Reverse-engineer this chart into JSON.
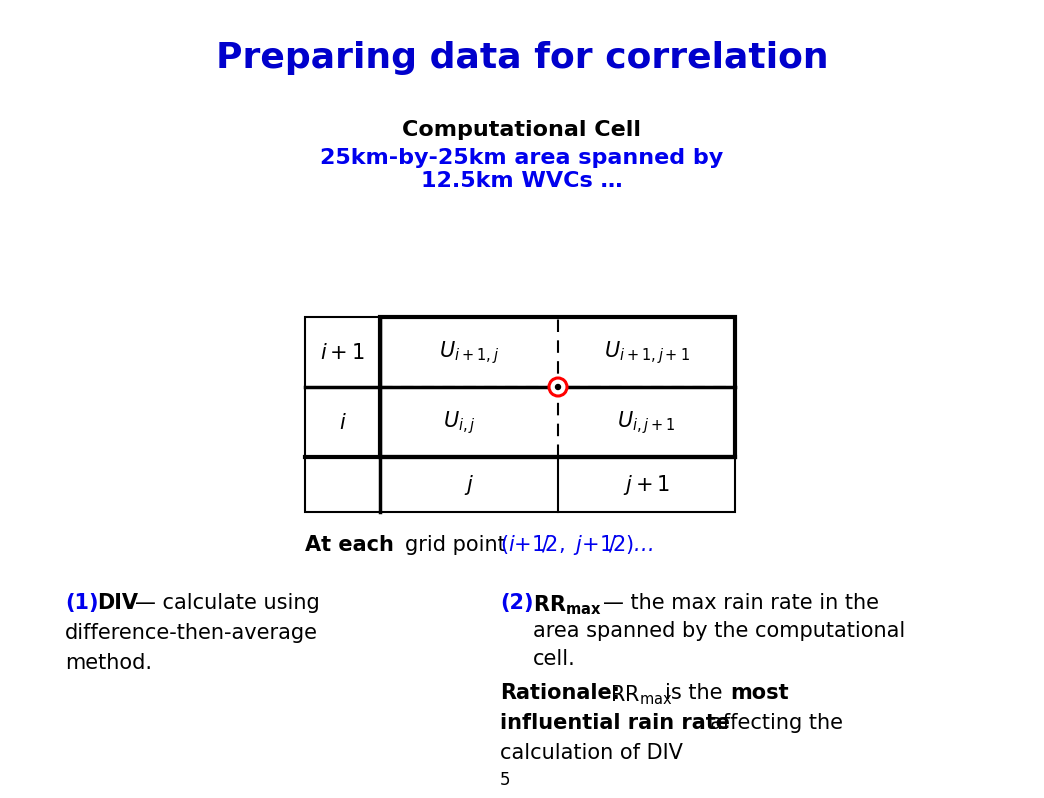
{
  "title": "Preparing data for correlation",
  "title_color": "#0000CC",
  "title_fontsize": 24,
  "comp_cell_title": "Computational Cell",
  "comp_cell_subtitle_line1": "25km-by-25km area spanned by",
  "comp_cell_subtitle_line2": "12.5km WVCs …",
  "comp_cell_color": "#0000EE",
  "footnote": "5",
  "bg_color": "#FFFFFF"
}
